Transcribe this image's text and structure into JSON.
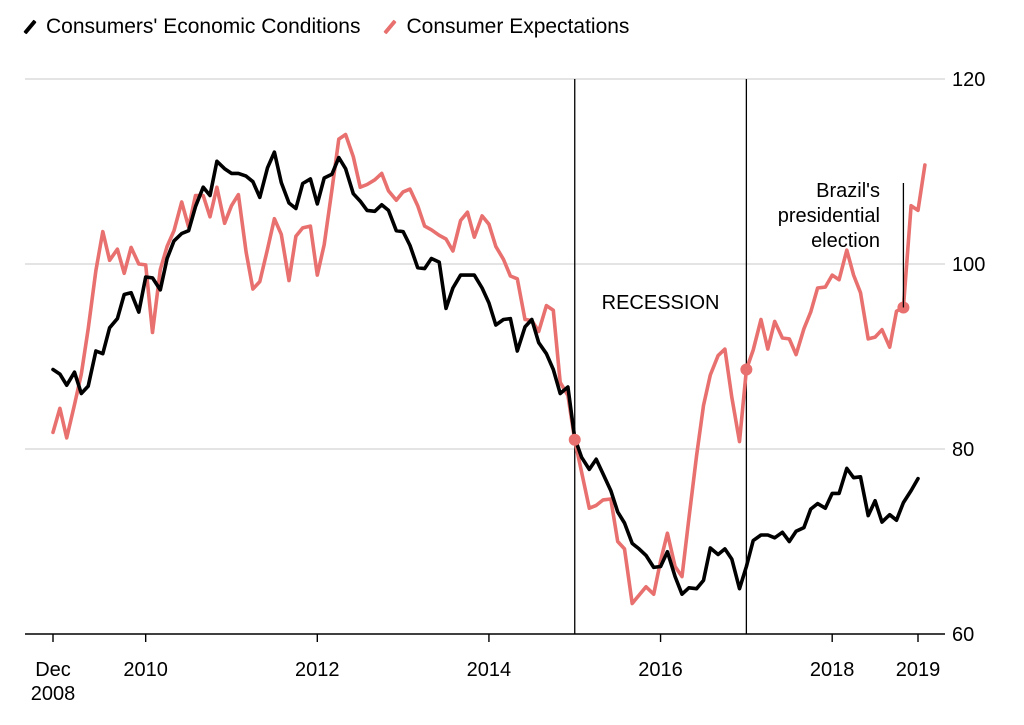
{
  "chart_data": {
    "type": "line",
    "title": "",
    "xlabel": "",
    "ylabel": "",
    "xlim": [
      2008.92,
      2019.0
    ],
    "ylim": [
      60,
      120
    ],
    "y_ticks": [
      "60",
      "80",
      "100",
      "120"
    ],
    "x_ticks": [
      {
        "value": 2008.92,
        "label": "Dec",
        "sublabel": "2008"
      },
      {
        "value": 2010,
        "label": "2010"
      },
      {
        "value": 2012,
        "label": "2012"
      },
      {
        "value": 2014,
        "label": "2014"
      },
      {
        "value": 2016,
        "label": "2016"
      },
      {
        "value": 2018,
        "label": "2018"
      },
      {
        "value": 2019,
        "label": "2019"
      }
    ],
    "grid": "horizontal",
    "legend_position": "top-left",
    "recession": {
      "label": "RECESSION",
      "start": 2015.0,
      "end": 2017.0
    },
    "annotation": {
      "lines": [
        "Brazil's",
        "presidential",
        "election"
      ],
      "x": 2018.83,
      "y": 95.3
    },
    "highlight_points": [
      {
        "x": 2015.0,
        "y": 81.0
      },
      {
        "x": 2017.0,
        "y": 88.6
      },
      {
        "x": 2018.83,
        "y": 95.3
      }
    ],
    "series": [
      {
        "name": "Consumers' Economic Conditions",
        "color": "#000000",
        "points": [
          [
            2008.92,
            88.6
          ],
          [
            2009.0,
            88.1
          ],
          [
            2009.08,
            86.9
          ],
          [
            2009.17,
            88.3
          ],
          [
            2009.25,
            86.0
          ],
          [
            2009.33,
            86.8
          ],
          [
            2009.42,
            90.6
          ],
          [
            2009.5,
            90.3
          ],
          [
            2009.58,
            93.1
          ],
          [
            2009.67,
            94.1
          ],
          [
            2009.75,
            96.7
          ],
          [
            2009.83,
            96.9
          ],
          [
            2009.92,
            94.8
          ],
          [
            2010.0,
            98.6
          ],
          [
            2010.08,
            98.5
          ],
          [
            2010.17,
            97.2
          ],
          [
            2010.25,
            100.6
          ],
          [
            2010.33,
            102.5
          ],
          [
            2010.42,
            103.3
          ],
          [
            2010.5,
            103.6
          ],
          [
            2010.58,
            106.2
          ],
          [
            2010.67,
            108.3
          ],
          [
            2010.75,
            107.4
          ],
          [
            2010.83,
            111.1
          ],
          [
            2010.92,
            110.3
          ],
          [
            2011.0,
            109.8
          ],
          [
            2011.08,
            109.8
          ],
          [
            2011.17,
            109.5
          ],
          [
            2011.25,
            108.9
          ],
          [
            2011.33,
            107.2
          ],
          [
            2011.42,
            110.4
          ],
          [
            2011.5,
            112.1
          ],
          [
            2011.58,
            108.8
          ],
          [
            2011.67,
            106.6
          ],
          [
            2011.75,
            106.0
          ],
          [
            2011.83,
            108.7
          ],
          [
            2011.92,
            109.2
          ],
          [
            2012.0,
            106.5
          ],
          [
            2012.08,
            109.3
          ],
          [
            2012.17,
            109.7
          ],
          [
            2012.25,
            111.5
          ],
          [
            2012.33,
            110.3
          ],
          [
            2012.42,
            107.6
          ],
          [
            2012.5,
            106.8
          ],
          [
            2012.58,
            105.8
          ],
          [
            2012.67,
            105.7
          ],
          [
            2012.75,
            106.4
          ],
          [
            2012.83,
            105.8
          ],
          [
            2012.92,
            103.6
          ],
          [
            2013.0,
            103.5
          ],
          [
            2013.08,
            102.0
          ],
          [
            2013.17,
            99.6
          ],
          [
            2013.25,
            99.5
          ],
          [
            2013.33,
            100.6
          ],
          [
            2013.42,
            100.2
          ],
          [
            2013.5,
            95.2
          ],
          [
            2013.58,
            97.4
          ],
          [
            2013.67,
            98.8
          ],
          [
            2013.75,
            98.8
          ],
          [
            2013.83,
            98.8
          ],
          [
            2013.92,
            97.4
          ],
          [
            2014.0,
            95.8
          ],
          [
            2014.08,
            93.4
          ],
          [
            2014.17,
            94.0
          ],
          [
            2014.25,
            94.1
          ],
          [
            2014.33,
            90.6
          ],
          [
            2014.42,
            93.2
          ],
          [
            2014.5,
            94.0
          ],
          [
            2014.58,
            91.5
          ],
          [
            2014.67,
            90.3
          ],
          [
            2014.75,
            88.6
          ],
          [
            2014.83,
            86.0
          ],
          [
            2014.92,
            86.7
          ],
          [
            2015.0,
            81.2
          ],
          [
            2015.08,
            79.1
          ],
          [
            2015.17,
            77.8
          ],
          [
            2015.25,
            78.9
          ],
          [
            2015.33,
            77.3
          ],
          [
            2015.42,
            75.5
          ],
          [
            2015.5,
            73.2
          ],
          [
            2015.58,
            72.0
          ],
          [
            2015.67,
            69.8
          ],
          [
            2015.75,
            69.2
          ],
          [
            2015.83,
            68.5
          ],
          [
            2015.92,
            67.2
          ],
          [
            2016.0,
            67.3
          ],
          [
            2016.08,
            68.9
          ],
          [
            2016.17,
            66.2
          ],
          [
            2016.25,
            64.3
          ],
          [
            2016.33,
            65.0
          ],
          [
            2016.42,
            64.9
          ],
          [
            2016.5,
            65.8
          ],
          [
            2016.58,
            69.3
          ],
          [
            2016.67,
            68.6
          ],
          [
            2016.75,
            69.2
          ],
          [
            2016.83,
            68.1
          ],
          [
            2016.92,
            64.9
          ],
          [
            2017.0,
            67.3
          ],
          [
            2017.08,
            70.1
          ],
          [
            2017.17,
            70.7
          ],
          [
            2017.25,
            70.7
          ],
          [
            2017.33,
            70.4
          ],
          [
            2017.42,
            71.0
          ],
          [
            2017.5,
            70.0
          ],
          [
            2017.58,
            71.1
          ],
          [
            2017.67,
            71.5
          ],
          [
            2017.75,
            73.5
          ],
          [
            2017.83,
            74.1
          ],
          [
            2017.92,
            73.6
          ],
          [
            2018.0,
            75.2
          ],
          [
            2018.08,
            75.2
          ],
          [
            2018.17,
            77.9
          ],
          [
            2018.25,
            76.9
          ],
          [
            2018.33,
            77.0
          ],
          [
            2018.42,
            72.8
          ],
          [
            2018.5,
            74.4
          ],
          [
            2018.58,
            72.1
          ],
          [
            2018.67,
            72.9
          ],
          [
            2018.75,
            72.3
          ],
          [
            2018.83,
            74.2
          ],
          [
            2018.92,
            75.5
          ],
          [
            2019.0,
            76.8
          ]
        ]
      },
      {
        "name": "Consumer Expectations",
        "color": "#E8716F",
        "points": [
          [
            2008.92,
            81.8
          ],
          [
            2009.0,
            84.4
          ],
          [
            2009.08,
            81.2
          ],
          [
            2009.17,
            84.8
          ],
          [
            2009.25,
            88.1
          ],
          [
            2009.33,
            93.0
          ],
          [
            2009.42,
            99.3
          ],
          [
            2009.5,
            103.5
          ],
          [
            2009.58,
            100.4
          ],
          [
            2009.67,
            101.6
          ],
          [
            2009.75,
            99.0
          ],
          [
            2009.83,
            101.8
          ],
          [
            2009.92,
            100.0
          ],
          [
            2010.0,
            99.9
          ],
          [
            2010.08,
            92.6
          ],
          [
            2010.17,
            99.4
          ],
          [
            2010.25,
            101.9
          ],
          [
            2010.33,
            103.6
          ],
          [
            2010.42,
            106.7
          ],
          [
            2010.5,
            104.0
          ],
          [
            2010.58,
            107.4
          ],
          [
            2010.67,
            107.4
          ],
          [
            2010.75,
            105.1
          ],
          [
            2010.83,
            108.3
          ],
          [
            2010.92,
            104.4
          ],
          [
            2011.0,
            106.3
          ],
          [
            2011.08,
            107.5
          ],
          [
            2011.17,
            101.3
          ],
          [
            2011.25,
            97.3
          ],
          [
            2011.33,
            98.1
          ],
          [
            2011.42,
            101.6
          ],
          [
            2011.5,
            104.9
          ],
          [
            2011.58,
            103.2
          ],
          [
            2011.67,
            98.2
          ],
          [
            2011.75,
            103.0
          ],
          [
            2011.83,
            103.9
          ],
          [
            2011.92,
            104.1
          ],
          [
            2012.0,
            98.8
          ],
          [
            2012.08,
            102.1
          ],
          [
            2012.17,
            108.0
          ],
          [
            2012.25,
            113.5
          ],
          [
            2012.33,
            114.0
          ],
          [
            2012.42,
            111.6
          ],
          [
            2012.5,
            108.3
          ],
          [
            2012.58,
            108.6
          ],
          [
            2012.67,
            109.1
          ],
          [
            2012.75,
            109.8
          ],
          [
            2012.83,
            107.9
          ],
          [
            2012.92,
            106.9
          ],
          [
            2013.0,
            107.8
          ],
          [
            2013.08,
            108.1
          ],
          [
            2013.17,
            106.3
          ],
          [
            2013.25,
            104.1
          ],
          [
            2013.33,
            103.7
          ],
          [
            2013.42,
            103.1
          ],
          [
            2013.5,
            102.7
          ],
          [
            2013.58,
            101.4
          ],
          [
            2013.67,
            104.7
          ],
          [
            2013.75,
            105.6
          ],
          [
            2013.83,
            102.9
          ],
          [
            2013.92,
            105.2
          ],
          [
            2014.0,
            104.3
          ],
          [
            2014.08,
            101.9
          ],
          [
            2014.17,
            100.5
          ],
          [
            2014.25,
            98.7
          ],
          [
            2014.33,
            98.4
          ],
          [
            2014.42,
            94.0
          ],
          [
            2014.5,
            93.9
          ],
          [
            2014.58,
            92.7
          ],
          [
            2014.67,
            95.5
          ],
          [
            2014.75,
            95.0
          ],
          [
            2014.83,
            87.2
          ],
          [
            2014.92,
            85.8
          ],
          [
            2015.0,
            81.0
          ],
          [
            2015.08,
            77.5
          ],
          [
            2015.17,
            73.6
          ],
          [
            2015.25,
            73.9
          ],
          [
            2015.33,
            74.5
          ],
          [
            2015.42,
            74.6
          ],
          [
            2015.5,
            70.0
          ],
          [
            2015.58,
            69.2
          ],
          [
            2015.67,
            63.3
          ],
          [
            2015.75,
            64.2
          ],
          [
            2015.83,
            65.1
          ],
          [
            2015.92,
            64.3
          ],
          [
            2016.0,
            67.9
          ],
          [
            2016.08,
            70.9
          ],
          [
            2016.17,
            67.3
          ],
          [
            2016.25,
            66.2
          ],
          [
            2016.33,
            72.5
          ],
          [
            2016.42,
            79.3
          ],
          [
            2016.5,
            84.7
          ],
          [
            2016.58,
            88.0
          ],
          [
            2016.67,
            90.1
          ],
          [
            2016.75,
            90.8
          ],
          [
            2016.83,
            85.6
          ],
          [
            2016.92,
            80.8
          ],
          [
            2017.0,
            88.6
          ],
          [
            2017.08,
            90.7
          ],
          [
            2017.17,
            94.0
          ],
          [
            2017.25,
            90.8
          ],
          [
            2017.33,
            93.8
          ],
          [
            2017.42,
            92.0
          ],
          [
            2017.5,
            91.9
          ],
          [
            2017.58,
            90.2
          ],
          [
            2017.67,
            93.0
          ],
          [
            2017.75,
            94.8
          ],
          [
            2017.83,
            97.4
          ],
          [
            2017.92,
            97.5
          ],
          [
            2018.0,
            98.8
          ],
          [
            2018.08,
            98.3
          ],
          [
            2018.17,
            101.5
          ],
          [
            2018.25,
            98.8
          ],
          [
            2018.33,
            96.9
          ],
          [
            2018.42,
            91.9
          ],
          [
            2018.5,
            92.1
          ],
          [
            2018.58,
            92.9
          ],
          [
            2018.67,
            91.0
          ],
          [
            2018.75,
            94.9
          ],
          [
            2018.83,
            95.3
          ],
          [
            2018.92,
            106.3
          ],
          [
            2019.0,
            105.8
          ],
          [
            2019.08,
            110.7
          ]
        ]
      }
    ]
  }
}
